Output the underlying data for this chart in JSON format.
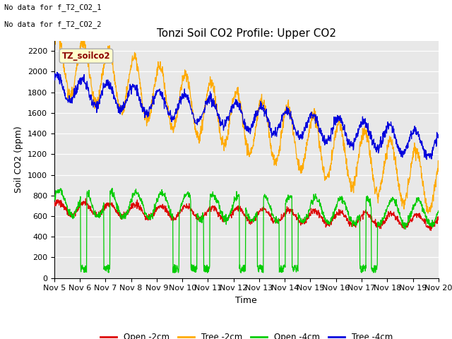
{
  "title": "Tonzi Soil CO2 Profile: Upper CO2",
  "xlabel": "Time",
  "ylabel": "Soil CO2 (ppm)",
  "no_data_text_1": "No data for f_T2_CO2_1",
  "no_data_text_2": "No data for f_T2_CO2_2",
  "legend_box_label": "TZ_soilco2",
  "legend_entries": [
    "Open -2cm",
    "Tree -2cm",
    "Open -4cm",
    "Tree -4cm"
  ],
  "legend_colors": [
    "#dd0000",
    "#ffaa00",
    "#00cc00",
    "#0000dd"
  ],
  "xticklabels": [
    "Nov 5",
    "Nov 6",
    "Nov 7",
    "Nov 8",
    "Nov 9",
    "Nov 10",
    "Nov 11",
    "Nov 12",
    "Nov 13",
    "Nov 14",
    "Nov 15",
    "Nov 16",
    "Nov 17",
    "Nov 18",
    "Nov 19",
    "Nov 20"
  ],
  "ylim": [
    0,
    2300
  ],
  "yticks": [
    0,
    200,
    400,
    600,
    800,
    1000,
    1200,
    1400,
    1600,
    1800,
    2000,
    2200
  ],
  "bg_color": "#e8e8e8",
  "grid_color": "#ffffff",
  "title_fontsize": 11,
  "axes_fontsize": 9,
  "tick_fontsize": 8
}
